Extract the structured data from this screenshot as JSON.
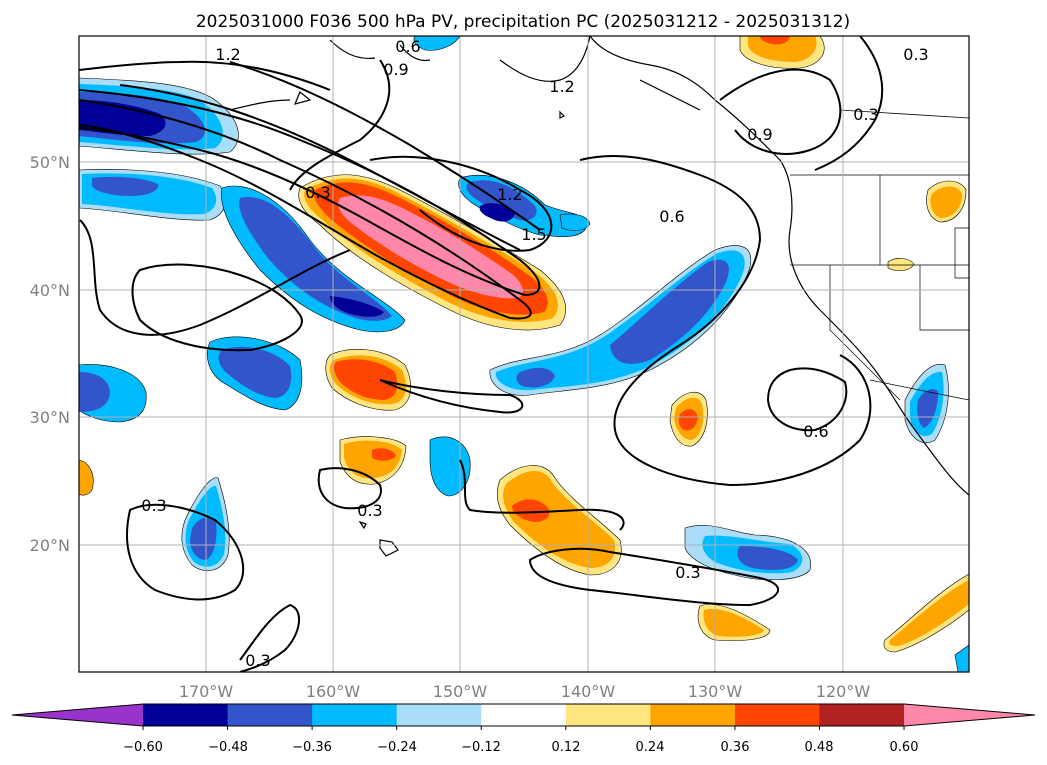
{
  "title": "2025031000 F036 500 hPa PV, precipitation PC (2025031212 - 2025031312)",
  "map": {
    "lat_ticks": [
      "50°N",
      "40°N",
      "30°N",
      "20°N"
    ],
    "lon_ticks": [
      "170°W",
      "160°W",
      "150°W",
      "140°W",
      "130°W",
      "120°W"
    ],
    "grid": true,
    "contour_labels": [
      "1.2",
      "0.6",
      "0.9",
      "1.2",
      "0.3",
      "0.3",
      "0.9",
      "0.3",
      "1.2",
      "1.5",
      "0.6",
      "0.6",
      "0.3",
      "0.3",
      "0.3",
      "0.3"
    ]
  },
  "colorbar": {
    "tick_labels": [
      "−0.60",
      "−0.48",
      "−0.36",
      "−0.24",
      "−0.12",
      "0.12",
      "0.24",
      "0.36",
      "0.48",
      "0.60"
    ],
    "colors": [
      "#9933cc",
      "#000099",
      "#3355cc",
      "#00bbff",
      "#aaddf7",
      "#ffffff",
      "#ffe680",
      "#ffa500",
      "#ff4500",
      "#b22222",
      "#ff88aa"
    ]
  }
}
